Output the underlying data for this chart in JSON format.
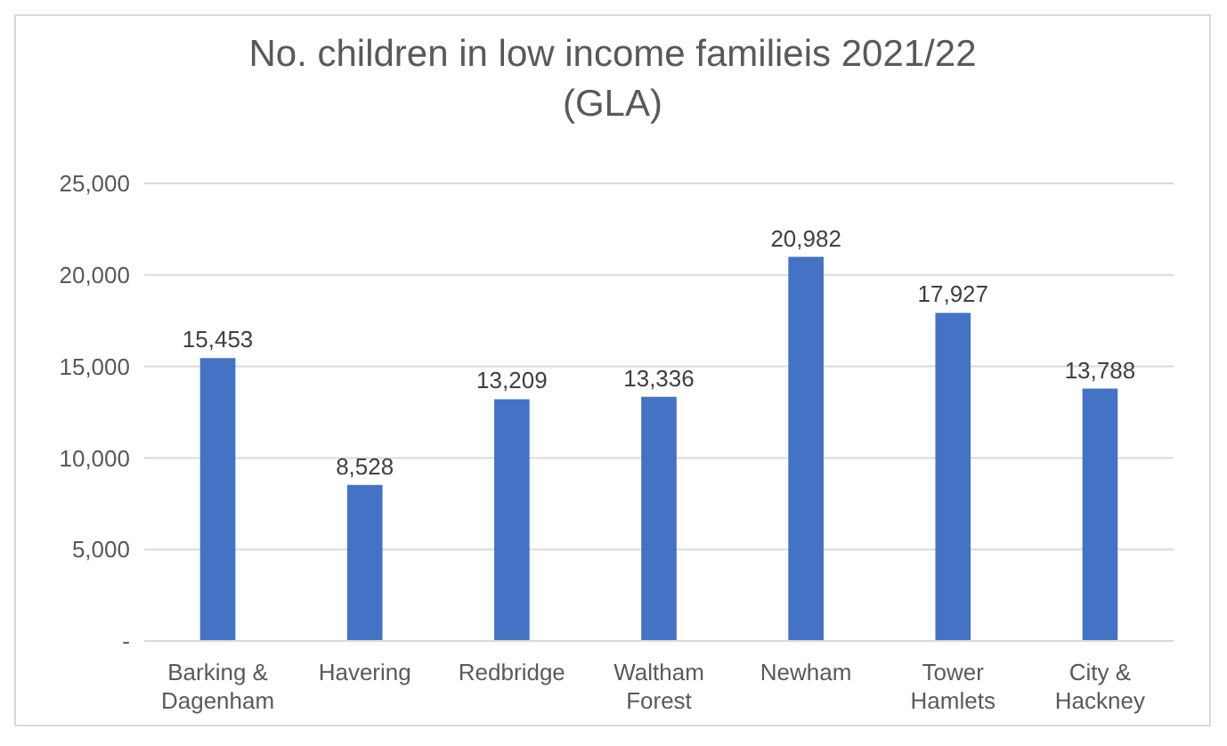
{
  "chart_data": {
    "type": "bar",
    "title": "No. children in low income familieis 2021/22 (GLA)",
    "categories": [
      "Barking & Dagenham",
      "Havering",
      "Redbridge",
      "Waltham Forest",
      "Newham",
      "Tower Hamlets",
      "City & Hackney"
    ],
    "values": [
      15453,
      8528,
      13209,
      13336,
      20982,
      17927,
      13788
    ],
    "color": "#4472c4",
    "ylim": [
      0,
      25000
    ],
    "yticks": [
      {
        "value": 0,
        "label": "-"
      },
      {
        "value": 5000,
        "label": "5,000"
      },
      {
        "value": 10000,
        "label": "10,000"
      },
      {
        "value": 15000,
        "label": "15,000"
      },
      {
        "value": 20000,
        "label": "20,000"
      },
      {
        "value": 25000,
        "label": "25,000"
      }
    ],
    "value_labels": [
      "15,453",
      "8,528",
      "13,209",
      "13,336",
      "20,982",
      "17,927",
      "13,788"
    ],
    "grid": "y"
  }
}
